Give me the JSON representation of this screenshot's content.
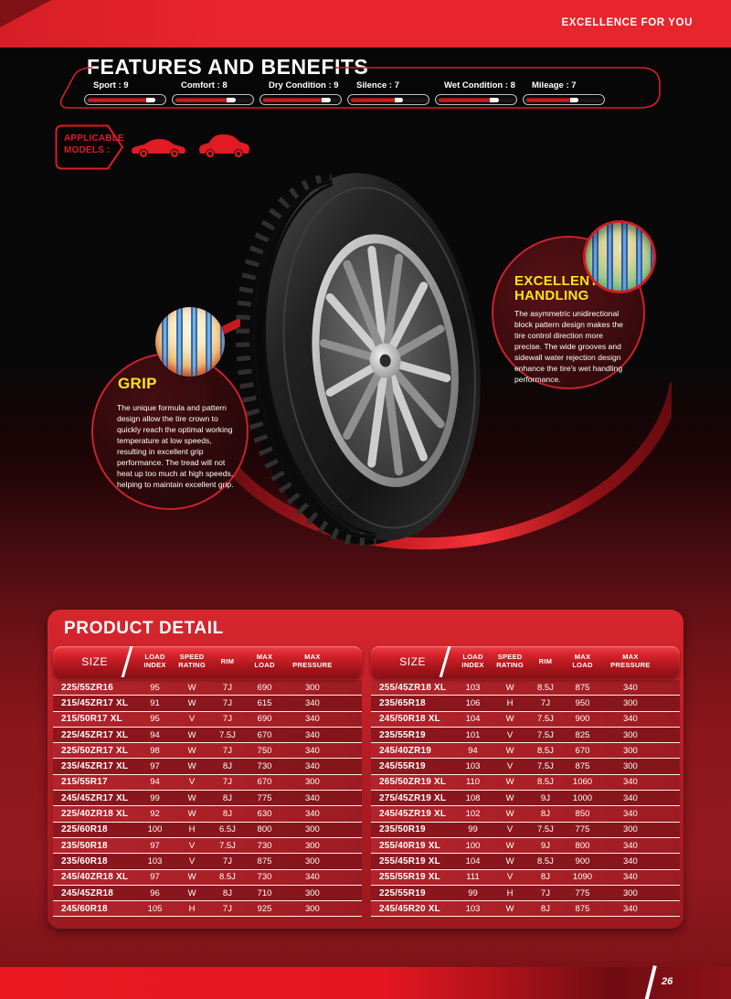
{
  "banner": {
    "tagline": "EXCELLENCE FOR YOU"
  },
  "features": {
    "title": "FEATURES AND BENEFITS",
    "ratings": [
      {
        "label": "Sport",
        "value": 9
      },
      {
        "label": "Comfort",
        "value": 8
      },
      {
        "label": "Dry Condition",
        "value": 9
      },
      {
        "label": "Silence",
        "value": 7
      },
      {
        "label": "Wet Condition",
        "value": 8
      },
      {
        "label": "Mileage",
        "value": 7
      }
    ]
  },
  "applicable_models": {
    "line1": "APPLICABLE",
    "line2": "MODELS :",
    "icons": [
      "sedan-car-icon",
      "suv-car-icon"
    ]
  },
  "callouts": {
    "grip": {
      "title": "GRIP",
      "body": "The unique formula and pattern design allow the tire crown to quickly reach the optimal working temperature at low speeds, resulting in excellent grip performance. The tread will not heat up too much at high speeds, helping to maintain excellent grip."
    },
    "handling": {
      "title": "EXCELLENT HANDLING",
      "body": "The asymmetric unidirectional block pattern design makes the tire control direction more precise. The wide grooves and sidewall water rejection design enhance the tire's wet handling performance."
    }
  },
  "product_detail": {
    "title": "PRODUCT DETAIL",
    "columns": [
      [
        "SIZE",
        ""
      ],
      [
        "LOAD",
        "INDEX"
      ],
      [
        "SPEED",
        "RATING"
      ],
      [
        "RIM",
        ""
      ],
      [
        "MAX",
        "LOAD"
      ],
      [
        "MAX",
        "PRESSURE"
      ]
    ],
    "left_rows": [
      [
        "225/55ZR16",
        "95",
        "W",
        "7J",
        "690",
        "300"
      ],
      [
        "215/45ZR17 XL",
        "91",
        "W",
        "7J",
        "615",
        "340"
      ],
      [
        "215/50R17 XL",
        "95",
        "V",
        "7J",
        "690",
        "340"
      ],
      [
        "225/45ZR17 XL",
        "94",
        "W",
        "7.5J",
        "670",
        "340"
      ],
      [
        "225/50ZR17 XL",
        "98",
        "W",
        "7J",
        "750",
        "340"
      ],
      [
        "235/45ZR17 XL",
        "97",
        "W",
        "8J",
        "730",
        "340"
      ],
      [
        "215/55R17",
        "94",
        "V",
        "7J",
        "670",
        "300"
      ],
      [
        "245/45ZR17 XL",
        "99",
        "W",
        "8J",
        "775",
        "340"
      ],
      [
        "225/40ZR18 XL",
        "92",
        "W",
        "8J",
        "630",
        "340"
      ],
      [
        "225/60R18",
        "100",
        "H",
        "6.5J",
        "800",
        "300"
      ],
      [
        "235/50R18",
        "97",
        "V",
        "7.5J",
        "730",
        "300"
      ],
      [
        "235/60R18",
        "103",
        "V",
        "7J",
        "875",
        "300"
      ],
      [
        "245/40ZR18 XL",
        "97",
        "W",
        "8.5J",
        "730",
        "340"
      ],
      [
        "245/45ZR18",
        "96",
        "W",
        "8J",
        "710",
        "300"
      ],
      [
        "245/60R18",
        "105",
        "H",
        "7J",
        "925",
        "300"
      ]
    ],
    "right_rows": [
      [
        "255/45ZR18 XL",
        "103",
        "W",
        "8.5J",
        "875",
        "340"
      ],
      [
        "235/65R18",
        "106",
        "H",
        "7J",
        "950",
        "300"
      ],
      [
        "245/50R18 XL",
        "104",
        "W",
        "7.5J",
        "900",
        "340"
      ],
      [
        "235/55R19",
        "101",
        "V",
        "7.5J",
        "825",
        "300"
      ],
      [
        "245/40ZR19",
        "94",
        "W",
        "8.5J",
        "670",
        "300"
      ],
      [
        "245/55R19",
        "103",
        "V",
        "7.5J",
        "875",
        "300"
      ],
      [
        "265/50ZR19 XL",
        "110",
        "W",
        "8.5J",
        "1060",
        "340"
      ],
      [
        "275/45ZR19 XL",
        "108",
        "W",
        "9J",
        "1000",
        "340"
      ],
      [
        "245/45ZR19 XL",
        "102",
        "W",
        "8J",
        "850",
        "340"
      ],
      [
        "235/50R19",
        "99",
        "V",
        "7.5J",
        "775",
        "300"
      ],
      [
        "255/40R19 XL",
        "100",
        "W",
        "9J",
        "800",
        "340"
      ],
      [
        "255/45R19 XL",
        "104",
        "W",
        "8.5J",
        "900",
        "340"
      ],
      [
        "255/55R19 XL",
        "111",
        "V",
        "8J",
        "1090",
        "340"
      ],
      [
        "225/55R19",
        "99",
        "H",
        "7J",
        "775",
        "300"
      ],
      [
        "245/45R20 XL",
        "103",
        "W",
        "8J",
        "875",
        "340"
      ]
    ]
  },
  "page_number": "26",
  "colors": {
    "accent_red": "#e4222b",
    "highlight_yellow": "#f7e617"
  }
}
